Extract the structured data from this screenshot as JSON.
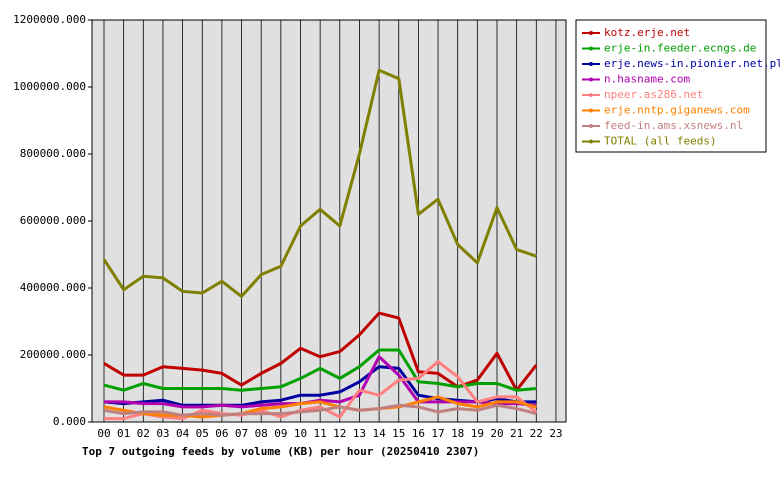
{
  "chart_data": {
    "type": "line",
    "title": "Top 7 outgoing feeds by volume (KB) per hour (20250410 2307)",
    "categories": [
      "00",
      "01",
      "02",
      "03",
      "04",
      "05",
      "06",
      "07",
      "08",
      "09",
      "10",
      "11",
      "12",
      "13",
      "14",
      "15",
      "16",
      "17",
      "18",
      "19",
      "20",
      "21",
      "22",
      "23"
    ],
    "ylim": [
      0,
      1200000
    ],
    "yticks": [
      {
        "value": 0,
        "label": "0.000"
      },
      {
        "value": 200000,
        "label": "200000.000"
      },
      {
        "value": 400000,
        "label": "400000.000"
      },
      {
        "value": 600000,
        "label": "600000.000"
      },
      {
        "value": 800000,
        "label": "800000.000"
      },
      {
        "value": 1000000,
        "label": "1000000.000"
      },
      {
        "value": 1200000,
        "label": "1200000.000"
      }
    ],
    "grid": "x",
    "legend": "outside-top-right",
    "series": [
      {
        "name": "kotz.erje.net",
        "color": "#c00000",
        "values": [
          175000,
          140000,
          140000,
          165000,
          160000,
          155000,
          145000,
          110000,
          145000,
          175000,
          220000,
          195000,
          210000,
          260000,
          325000,
          310000,
          150000,
          145000,
          105000,
          125000,
          205000,
          95000,
          170000,
          null
        ]
      },
      {
        "name": "erje-in.feeder.ecngs.de",
        "color": "#00a000",
        "values": [
          110000,
          95000,
          115000,
          100000,
          100000,
          100000,
          100000,
          95000,
          100000,
          105000,
          130000,
          160000,
          130000,
          165000,
          215000,
          215000,
          120000,
          115000,
          105000,
          115000,
          115000,
          95000,
          100000,
          null
        ]
      },
      {
        "name": "erje.news-in.pionier.net.pl",
        "color": "#0000a0",
        "values": [
          60000,
          55000,
          60000,
          65000,
          50000,
          50000,
          50000,
          50000,
          60000,
          65000,
          80000,
          80000,
          90000,
          120000,
          165000,
          160000,
          80000,
          70000,
          65000,
          60000,
          70000,
          60000,
          60000,
          null
        ]
      },
      {
        "name": "n.hasname.com",
        "color": "#b000b0",
        "values": [
          60000,
          60000,
          55000,
          55000,
          45000,
          45000,
          50000,
          45000,
          50000,
          55000,
          55000,
          65000,
          60000,
          80000,
          195000,
          140000,
          60000,
          60000,
          60000,
          60000,
          55000,
          55000,
          50000,
          null
        ]
      },
      {
        "name": "npeer.as286.net",
        "color": "#ff8080",
        "values": [
          10000,
          10000,
          25000,
          15000,
          10000,
          35000,
          25000,
          20000,
          35000,
          15000,
          35000,
          45000,
          15000,
          95000,
          80000,
          125000,
          130000,
          180000,
          135000,
          60000,
          75000,
          75000,
          30000,
          null
        ]
      },
      {
        "name": "erje.nntp.giganews.com",
        "color": "#ff8000",
        "values": [
          45000,
          35000,
          25000,
          20000,
          20000,
          15000,
          20000,
          25000,
          40000,
          45000,
          55000,
          60000,
          45000,
          35000,
          40000,
          45000,
          60000,
          75000,
          55000,
          45000,
          60000,
          60000,
          45000,
          null
        ]
      },
      {
        "name": "feed-in.ams.xsnews.nl",
        "color": "#c08080",
        "values": [
          35000,
          25000,
          30000,
          30000,
          20000,
          25000,
          20000,
          25000,
          25000,
          25000,
          30000,
          35000,
          45000,
          35000,
          40000,
          50000,
          45000,
          30000,
          40000,
          35000,
          50000,
          40000,
          25000,
          null
        ]
      },
      {
        "name": "TOTAL (all feeds)",
        "color": "#808000",
        "values": [
          485000,
          395000,
          435000,
          430000,
          390000,
          385000,
          420000,
          375000,
          440000,
          465000,
          585000,
          635000,
          585000,
          800000,
          1050000,
          1025000,
          620000,
          665000,
          530000,
          475000,
          640000,
          515000,
          495000,
          null
        ]
      }
    ]
  }
}
